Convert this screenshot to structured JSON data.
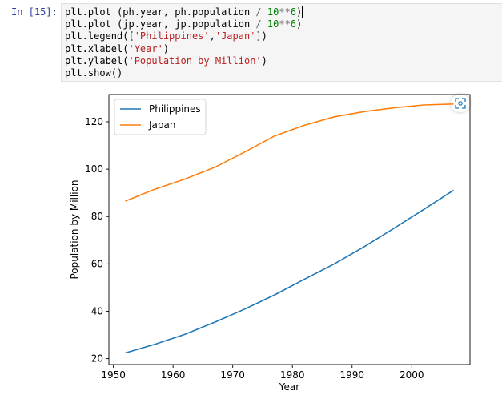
{
  "cell": {
    "prompt": "In [15]:",
    "code_lines": [
      [
        {
          "t": "plt.plot (ph.year, ph.population ",
          "c": "var"
        },
        {
          "t": "/",
          "c": "op"
        },
        {
          "t": " ",
          "c": "var"
        },
        {
          "t": "10",
          "c": "num"
        },
        {
          "t": "**",
          "c": "op"
        },
        {
          "t": "6",
          "c": "num"
        },
        {
          "t": ")",
          "c": "var"
        }
      ],
      [
        {
          "t": "plt.plot (jp.year, jp.population ",
          "c": "var"
        },
        {
          "t": "/",
          "c": "op"
        },
        {
          "t": " ",
          "c": "var"
        },
        {
          "t": "10",
          "c": "num"
        },
        {
          "t": "**",
          "c": "op"
        },
        {
          "t": "6",
          "c": "num"
        },
        {
          "t": ")",
          "c": "var"
        }
      ],
      [
        {
          "t": "plt.legend([",
          "c": "var"
        },
        {
          "t": "'Philippines'",
          "c": "str"
        },
        {
          "t": ",",
          "c": "var"
        },
        {
          "t": "'Japan'",
          "c": "str"
        },
        {
          "t": "])",
          "c": "var"
        }
      ],
      [
        {
          "t": "plt.xlabel(",
          "c": "var"
        },
        {
          "t": "'Year'",
          "c": "str"
        },
        {
          "t": ")",
          "c": "var"
        }
      ],
      [
        {
          "t": "plt.ylabel(",
          "c": "var"
        },
        {
          "t": "'Population by Million'",
          "c": "str"
        },
        {
          "t": ")",
          "c": "var"
        }
      ],
      [
        {
          "t": "plt.show()",
          "c": "var"
        }
      ]
    ]
  },
  "figure_toolbar": {
    "icon": "expand-icon"
  },
  "colors": {
    "philippines": "#1f77b4",
    "japan": "#ff7f0e"
  },
  "chart_data": {
    "type": "line",
    "title": "",
    "xlabel": "Year",
    "ylabel": "Population by Million",
    "xlim": [
      1949.25,
      2009.75
    ],
    "ylim": [
      17.5,
      131.5
    ],
    "xticks": [
      1950,
      1960,
      1970,
      1980,
      1990,
      2000
    ],
    "yticks": [
      20,
      40,
      60,
      80,
      100,
      120
    ],
    "grid": false,
    "legend": "upper-left",
    "series": [
      {
        "name": "Philippines",
        "x": [
          1952,
          1957,
          1962,
          1967,
          1972,
          1977,
          1982,
          1987,
          1992,
          1997,
          2002,
          2007
        ],
        "y": [
          22.4,
          26.1,
          30.3,
          35.4,
          40.9,
          46.9,
          53.5,
          60.0,
          67.2,
          75.0,
          83.0,
          91.1
        ]
      },
      {
        "name": "Japan",
        "x": [
          1952,
          1957,
          1962,
          1967,
          1972,
          1977,
          1982,
          1987,
          1992,
          1997,
          2002,
          2007
        ],
        "y": [
          86.5,
          91.6,
          95.8,
          100.8,
          107.2,
          114.0,
          118.5,
          122.1,
          124.3,
          125.9,
          127.1,
          127.5
        ]
      }
    ]
  }
}
